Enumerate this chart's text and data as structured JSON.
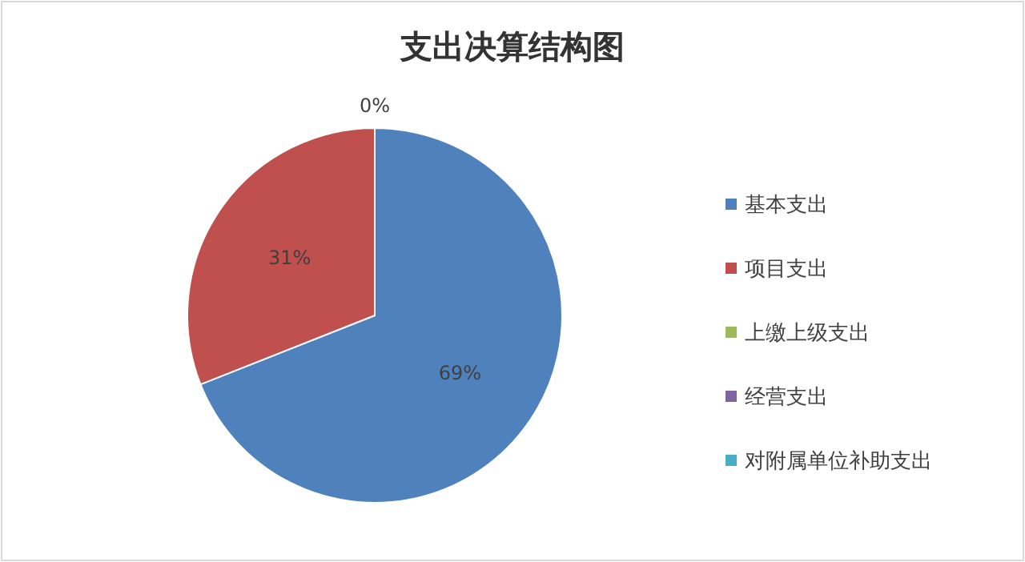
{
  "chart_data": {
    "type": "pie",
    "title": "支出决算结构图",
    "categories": [
      "基本支出",
      "项目支出",
      "上缴上级支出",
      "经营支出",
      "对附属单位补助支出"
    ],
    "values": [
      69,
      31,
      0,
      0,
      0
    ],
    "colors": [
      "#4f81bd",
      "#c0504d",
      "#9bbb59",
      "#8064a2",
      "#4bacc6"
    ],
    "value_labels": [
      "69%",
      "31%",
      "0%",
      null,
      null
    ],
    "legend": "right"
  }
}
